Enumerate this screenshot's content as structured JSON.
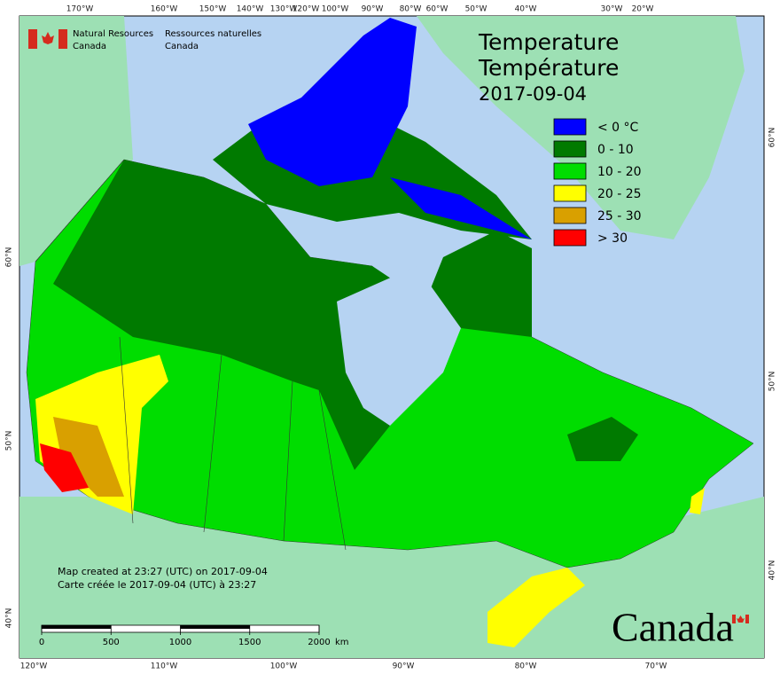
{
  "header": {
    "agency_en": [
      "Natural Resources",
      "Canada"
    ],
    "agency_fr": [
      "Ressources naturelles",
      "Canada"
    ]
  },
  "title": [
    "Temperature",
    "Température",
    "2017-09-04"
  ],
  "legend": [
    {
      "label": "< 0 °C",
      "color": "#0000ff"
    },
    {
      "label": "0 - 10",
      "color": "#007a00"
    },
    {
      "label": "10 - 20",
      "color": "#00dd00"
    },
    {
      "label": "20 - 25",
      "color": "#ffff00"
    },
    {
      "label": "25 - 30",
      "color": "#d9a000"
    },
    {
      "label": "> 30",
      "color": "#ff0000"
    }
  ],
  "graticule": {
    "top": [
      "170°W",
      "160°W",
      "150°W",
      "140°W",
      "130°W",
      "120°W",
      "100°W",
      "90°W",
      "80°W",
      "60°W",
      "50°W",
      "40°W",
      "30°W",
      "20°W"
    ],
    "bottom": [
      "120°W",
      "110°W",
      "100°W",
      "90°W",
      "80°W",
      "70°W"
    ],
    "left": [
      "60°N",
      "50°N",
      "40°N"
    ],
    "right": [
      "60°N",
      "50°N",
      "40°N"
    ]
  },
  "notes": [
    "Map created at 23:27 (UTC) on 2017-09-04",
    "Carte créée le 2017-09-04 (UTC) à 23:27"
  ],
  "scale": {
    "ticks": [
      0,
      500,
      1000,
      1500,
      2000
    ],
    "unit": "km"
  },
  "wordmark": "Canada"
}
